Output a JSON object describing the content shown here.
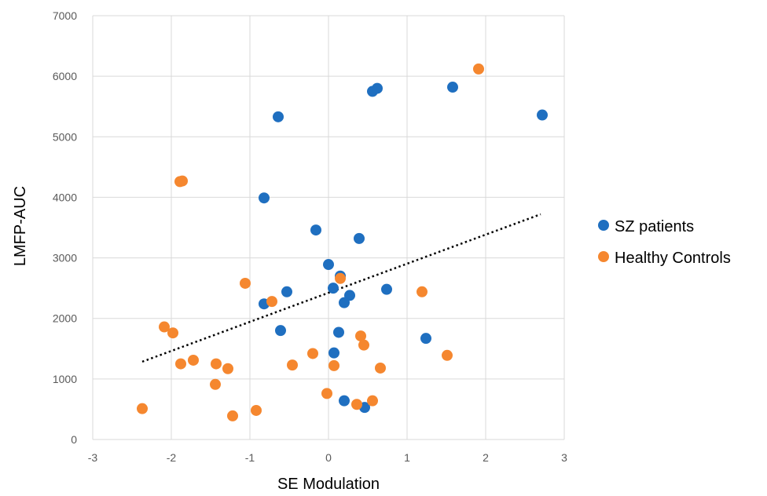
{
  "chart_data": {
    "type": "scatter",
    "title": "",
    "xlabel": "SE Modulation",
    "ylabel": "LMFP-AUC",
    "xlim": [
      -3,
      3
    ],
    "ylim": [
      0,
      7000
    ],
    "xticks": [
      -3,
      -2,
      -1,
      0,
      1,
      2,
      3
    ],
    "yticks": [
      0,
      1000,
      2000,
      3000,
      4000,
      5000,
      6000,
      7000
    ],
    "grid": true,
    "legend_position": "right",
    "series": [
      {
        "name": "SZ patients",
        "color": "#1f6fc0",
        "points": [
          {
            "x": -0.64,
            "y": 5330
          },
          {
            "x": 0.56,
            "y": 5750
          },
          {
            "x": 0.62,
            "y": 5800
          },
          {
            "x": 1.58,
            "y": 5820
          },
          {
            "x": 2.72,
            "y": 5360
          },
          {
            "x": -0.82,
            "y": 3990
          },
          {
            "x": -0.16,
            "y": 3460
          },
          {
            "x": 0.39,
            "y": 3320
          },
          {
            "x": 0.0,
            "y": 2890
          },
          {
            "x": 0.15,
            "y": 2700
          },
          {
            "x": 0.06,
            "y": 2500
          },
          {
            "x": -0.53,
            "y": 2440
          },
          {
            "x": 0.27,
            "y": 2380
          },
          {
            "x": 0.74,
            "y": 2480
          },
          {
            "x": -0.82,
            "y": 2240
          },
          {
            "x": 0.2,
            "y": 2260
          },
          {
            "x": -0.61,
            "y": 1800
          },
          {
            "x": 0.13,
            "y": 1770
          },
          {
            "x": 1.24,
            "y": 1670
          },
          {
            "x": 0.07,
            "y": 1430
          },
          {
            "x": 0.2,
            "y": 640
          },
          {
            "x": 0.46,
            "y": 530
          }
        ]
      },
      {
        "name": "Healthy Controls",
        "color": "#f5872f",
        "points": [
          {
            "x": 1.91,
            "y": 6120
          },
          {
            "x": -1.89,
            "y": 4260
          },
          {
            "x": -1.86,
            "y": 4270
          },
          {
            "x": -1.06,
            "y": 2580
          },
          {
            "x": -0.72,
            "y": 2280
          },
          {
            "x": 0.15,
            "y": 2660
          },
          {
            "x": 1.19,
            "y": 2440
          },
          {
            "x": -2.09,
            "y": 1860
          },
          {
            "x": -1.98,
            "y": 1760
          },
          {
            "x": 0.41,
            "y": 1710
          },
          {
            "x": 0.45,
            "y": 1560
          },
          {
            "x": -1.88,
            "y": 1250
          },
          {
            "x": -1.72,
            "y": 1310
          },
          {
            "x": -1.43,
            "y": 1250
          },
          {
            "x": -1.28,
            "y": 1170
          },
          {
            "x": -0.46,
            "y": 1230
          },
          {
            "x": -0.2,
            "y": 1420
          },
          {
            "x": 0.07,
            "y": 1220
          },
          {
            "x": 0.66,
            "y": 1180
          },
          {
            "x": 1.51,
            "y": 1390
          },
          {
            "x": -1.44,
            "y": 910
          },
          {
            "x": -0.02,
            "y": 760
          },
          {
            "x": 0.36,
            "y": 580
          },
          {
            "x": 0.56,
            "y": 640
          },
          {
            "x": -2.37,
            "y": 510
          },
          {
            "x": -1.22,
            "y": 390
          },
          {
            "x": -0.92,
            "y": 480
          }
        ]
      }
    ],
    "trendline": {
      "style": "dotted",
      "color": "#000000",
      "x_start": -2.37,
      "y_start": 1285,
      "x_end": 2.7,
      "y_end": 3720
    }
  }
}
